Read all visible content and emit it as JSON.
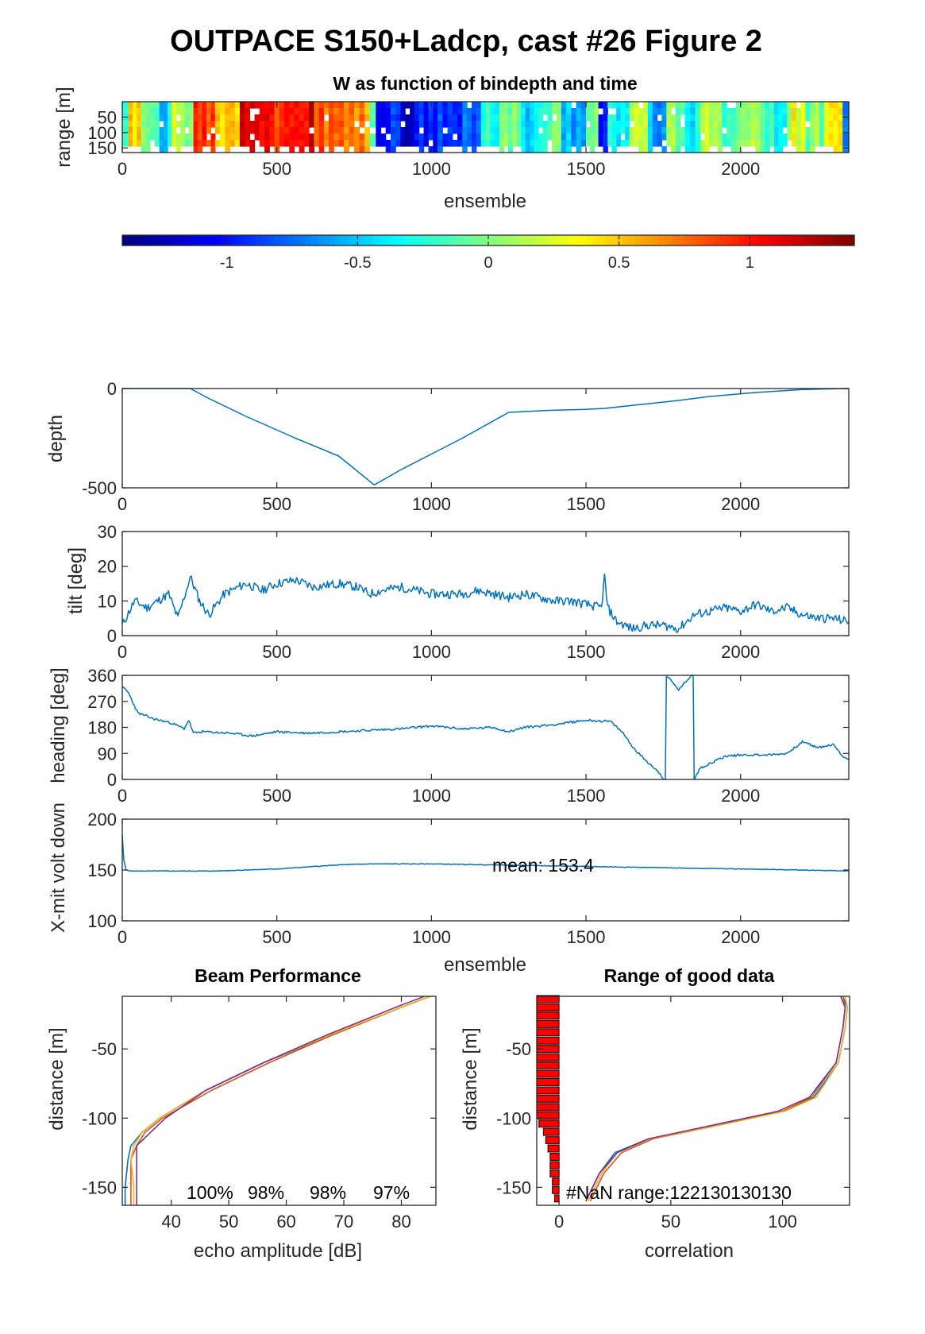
{
  "figure": {
    "title": "OUTPACE S150+Ladcp, cast #26 Figure 2"
  },
  "colors": {
    "line": "#0072BD",
    "axes": "#262626",
    "bar_fill": "#ff0000",
    "beam_series": [
      "#0072BD",
      "#D95319",
      "#EDB120",
      "#7E2F8E"
    ]
  },
  "chart_data": [
    {
      "id": "w_image",
      "type": "heatmap",
      "title": "W as function of bindepth and time",
      "xlabel": "ensemble",
      "ylabel": "range [m]",
      "xlim": [
        0,
        2350
      ],
      "ylim": [
        165,
        0
      ],
      "xticks": [
        0,
        500,
        1000,
        1500,
        2000
      ],
      "yticks": [
        50,
        100,
        150
      ],
      "colormap": "jet",
      "clim": [
        -1.4,
        1.4
      ],
      "colorbar_ticks": [
        -1,
        -0.5,
        0,
        0.5,
        1
      ],
      "segments": [
        {
          "x0": 0,
          "x1": 20,
          "value": -0.2
        },
        {
          "x0": 20,
          "x1": 60,
          "value": 0.5
        },
        {
          "x0": 60,
          "x1": 120,
          "value": 0.05
        },
        {
          "x0": 120,
          "x1": 160,
          "value": -0.4
        },
        {
          "x0": 160,
          "x1": 230,
          "value": 0.1
        },
        {
          "x0": 230,
          "x1": 300,
          "value": 0.9
        },
        {
          "x0": 300,
          "x1": 380,
          "value": 0.6
        },
        {
          "x0": 380,
          "x1": 460,
          "value": 1.1
        },
        {
          "x0": 460,
          "x1": 540,
          "value": 0.95
        },
        {
          "x0": 540,
          "x1": 620,
          "value": 1.15
        },
        {
          "x0": 620,
          "x1": 700,
          "value": 0.85
        },
        {
          "x0": 700,
          "x1": 800,
          "value": 0.7
        },
        {
          "x0": 800,
          "x1": 820,
          "value": -0.2
        },
        {
          "x0": 820,
          "x1": 900,
          "value": -1.0
        },
        {
          "x0": 900,
          "x1": 960,
          "value": -1.15
        },
        {
          "x0": 960,
          "x1": 1020,
          "value": -0.95
        },
        {
          "x0": 1020,
          "x1": 1100,
          "value": -0.85
        },
        {
          "x0": 1100,
          "x1": 1160,
          "value": -0.7
        },
        {
          "x0": 1160,
          "x1": 1220,
          "value": -0.3
        },
        {
          "x0": 1220,
          "x1": 1290,
          "value": 0.05
        },
        {
          "x0": 1290,
          "x1": 1360,
          "value": -0.45
        },
        {
          "x0": 1360,
          "x1": 1420,
          "value": -0.15
        },
        {
          "x0": 1420,
          "x1": 1500,
          "value": -0.55
        },
        {
          "x0": 1500,
          "x1": 1540,
          "value": 0.1
        },
        {
          "x0": 1540,
          "x1": 1570,
          "value": -0.9
        },
        {
          "x0": 1570,
          "x1": 1640,
          "value": -0.3
        },
        {
          "x0": 1640,
          "x1": 1700,
          "value": 0.15
        },
        {
          "x0": 1700,
          "x1": 1760,
          "value": -0.6
        },
        {
          "x0": 1760,
          "x1": 1820,
          "value": 0.0
        },
        {
          "x0": 1820,
          "x1": 1870,
          "value": -0.35
        },
        {
          "x0": 1870,
          "x1": 1940,
          "value": 0.2
        },
        {
          "x0": 1940,
          "x1": 2000,
          "value": -0.2
        },
        {
          "x0": 2000,
          "x1": 2080,
          "value": 0.05
        },
        {
          "x0": 2080,
          "x1": 2150,
          "value": -0.25
        },
        {
          "x0": 2150,
          "x1": 2210,
          "value": 0.25
        },
        {
          "x0": 2210,
          "x1": 2270,
          "value": 0.0
        },
        {
          "x0": 2270,
          "x1": 2330,
          "value": 0.35
        },
        {
          "x0": 2330,
          "x1": 2350,
          "value": -0.8
        }
      ]
    },
    {
      "id": "depth",
      "type": "line",
      "ylabel": "depth",
      "xlim": [
        0,
        2350
      ],
      "ylim": [
        -500,
        0
      ],
      "xticks": [
        0,
        500,
        1000,
        1500,
        2000
      ],
      "yticks": [
        -500,
        0
      ],
      "x": [
        0,
        220,
        280,
        400,
        560,
        700,
        815,
        900,
        1000,
        1100,
        1250,
        1380,
        1500,
        1560,
        1650,
        1800,
        1900,
        2050,
        2200,
        2350
      ],
      "y": [
        0,
        0,
        -50,
        -140,
        -250,
        -340,
        -485,
        -410,
        -330,
        -250,
        -120,
        -110,
        -105,
        -100,
        -85,
        -60,
        -40,
        -20,
        -5,
        0
      ]
    },
    {
      "id": "tilt",
      "type": "line",
      "ylabel": "tilt [deg]",
      "xlim": [
        0,
        2350
      ],
      "ylim": [
        0,
        30
      ],
      "xticks": [
        0,
        500,
        1000,
        1500,
        2000
      ],
      "yticks": [
        0,
        10,
        20,
        30
      ],
      "x": [
        0,
        40,
        80,
        150,
        180,
        220,
        250,
        280,
        330,
        400,
        450,
        500,
        560,
        620,
        700,
        760,
        800,
        840,
        900,
        950,
        1000,
        1100,
        1150,
        1200,
        1250,
        1300,
        1350,
        1400,
        1450,
        1500,
        1550,
        1560,
        1570,
        1600,
        1650,
        1700,
        1750,
        1800,
        1850,
        1900,
        1950,
        2000,
        2050,
        2100,
        2150,
        2200,
        2250,
        2300,
        2350
      ],
      "y": [
        3,
        10,
        8,
        12,
        5,
        17,
        10,
        6,
        12,
        15,
        13,
        15,
        16,
        14,
        15,
        14,
        12,
        13,
        14,
        13,
        12,
        12,
        13,
        12,
        11,
        12,
        11,
        10,
        10,
        9,
        8,
        17,
        8,
        4,
        2,
        3,
        3,
        2,
        6,
        7,
        8,
        7,
        9,
        7,
        8,
        6,
        5,
        5,
        4
      ]
    },
    {
      "id": "heading",
      "type": "line",
      "ylabel": "heading [deg]",
      "xlim": [
        0,
        2350
      ],
      "ylim": [
        0,
        360
      ],
      "xticks": [
        0,
        500,
        1000,
        1500,
        2000
      ],
      "yticks": [
        0,
        90,
        180,
        270,
        360
      ],
      "x": [
        0,
        20,
        50,
        100,
        160,
        200,
        215,
        230,
        260,
        350,
        420,
        500,
        600,
        700,
        800,
        900,
        1000,
        1100,
        1200,
        1250,
        1300,
        1400,
        1500,
        1580,
        1620,
        1660,
        1700,
        1740,
        1750,
        1760,
        1800,
        1840,
        1850,
        1870,
        1950,
        2000,
        2100,
        2150,
        2200,
        2250,
        2300,
        2330,
        2350
      ],
      "y": [
        320,
        300,
        230,
        210,
        195,
        175,
        205,
        160,
        165,
        160,
        150,
        165,
        160,
        165,
        170,
        175,
        185,
        175,
        180,
        165,
        180,
        190,
        205,
        200,
        160,
        100,
        60,
        20,
        0,
        360,
        310,
        360,
        0,
        40,
        80,
        85,
        85,
        90,
        130,
        110,
        120,
        80,
        70
      ]
    },
    {
      "id": "xmit_volt",
      "type": "line",
      "ylabel": "X-mit volt down",
      "xlabel": "ensemble",
      "xlim": [
        0,
        2350
      ],
      "ylim": [
        100,
        200
      ],
      "xticks": [
        0,
        500,
        1000,
        1500,
        2000
      ],
      "yticks": [
        100,
        150,
        200
      ],
      "annotation": "mean: 153.4",
      "x": [
        0,
        5,
        12,
        30,
        100,
        300,
        500,
        700,
        800,
        1000,
        1200,
        1400,
        1600,
        1800,
        2000,
        2200,
        2350
      ],
      "y": [
        185,
        160,
        150,
        149,
        149,
        149,
        151,
        155,
        156,
        156,
        155,
        154,
        153,
        152,
        151,
        150,
        149
      ]
    },
    {
      "id": "beam_performance",
      "type": "line",
      "title": "Beam Performance",
      "xlabel": "echo amplitude [dB]",
      "ylabel": "distance [m]",
      "xlim": [
        31.5,
        86
      ],
      "ylim": [
        -163,
        -12
      ],
      "xticks": [
        40,
        50,
        60,
        70,
        80
      ],
      "yticks": [
        -150,
        -100,
        -50
      ],
      "annotations": [
        "100%",
        "98%",
        "98%",
        "97%"
      ],
      "series": [
        {
          "y": [
            -12,
            -20,
            -40,
            -60,
            -80,
            -100,
            -110,
            -120,
            -130,
            -150,
            -163
          ],
          "values": [
            85,
            80,
            68,
            56,
            46,
            38,
            35,
            33,
            32.5,
            32,
            32
          ]
        },
        {
          "y": [
            -12,
            -20,
            -40,
            -60,
            -80,
            -100,
            -110,
            -120,
            -130,
            -150,
            -163
          ],
          "values": [
            85,
            80,
            68,
            57,
            47,
            38.5,
            35.5,
            34,
            33,
            33,
            33
          ]
        },
        {
          "y": [
            -12,
            -20,
            -40,
            -60,
            -80,
            -100,
            -110,
            -120,
            -130,
            -150,
            -163
          ],
          "values": [
            85,
            80,
            67.5,
            56,
            46,
            38,
            35,
            33.5,
            33,
            33.5,
            33.5
          ]
        },
        {
          "y": [
            -12,
            -20,
            -40,
            -60,
            -80,
            -100,
            -110,
            -120,
            -130,
            -150,
            -163
          ],
          "values": [
            84,
            79,
            67,
            56,
            46,
            39,
            36.5,
            34,
            34,
            34,
            34
          ]
        }
      ]
    },
    {
      "id": "range_good_data",
      "type": "bar",
      "title": "Range of good data",
      "xlabel": "correlation",
      "ylabel": "distance [m]",
      "xlim": [
        -10,
        130
      ],
      "ylim": [
        -163,
        -12
      ],
      "xticks": [
        0,
        50,
        100
      ],
      "yticks": [
        -150,
        -100,
        -50
      ],
      "annotation": "#NaN range:122130130130",
      "bars": {
        "y": [
          -14,
          -20,
          -26,
          -32,
          -38,
          -44,
          -50,
          -56,
          -62,
          -68,
          -74,
          -80,
          -86,
          -92,
          -98,
          -104,
          -110,
          -116,
          -122,
          -128,
          -134,
          -140,
          -146,
          -152,
          -158
        ],
        "values": [
          -10,
          -10,
          -10,
          -10,
          -10,
          -10,
          -10,
          -10,
          -10,
          -10,
          -10,
          -10,
          -10,
          -10,
          -10,
          -9,
          -7,
          -6,
          -5,
          -4,
          -4,
          -4,
          -3,
          -3,
          -2
        ]
      },
      "series": [
        {
          "y": [
            -12,
            -20,
            -35,
            -60,
            -85,
            -95,
            -105,
            -115,
            -125,
            -140,
            -160
          ],
          "values": [
            127,
            129,
            128,
            125,
            114,
            100,
            70,
            40,
            25,
            18,
            12
          ]
        },
        {
          "y": [
            -12,
            -20,
            -35,
            -60,
            -85,
            -95,
            -105,
            -115,
            -125,
            -140,
            -160
          ],
          "values": [
            127,
            128,
            127,
            124,
            113,
            100,
            72,
            42,
            28,
            20,
            14
          ]
        },
        {
          "y": [
            -12,
            -20,
            -35,
            -60,
            -85,
            -95,
            -105,
            -115,
            -125,
            -140,
            -160
          ],
          "values": [
            128,
            129,
            128,
            125,
            115,
            101,
            72,
            41,
            26,
            19,
            13
          ]
        },
        {
          "y": [
            -12,
            -20,
            -35,
            -60,
            -85,
            -95,
            -105,
            -115,
            -125,
            -140,
            -160
          ],
          "values": [
            126,
            128,
            127,
            124,
            112,
            98,
            69,
            40,
            26,
            18,
            12
          ]
        }
      ]
    }
  ]
}
